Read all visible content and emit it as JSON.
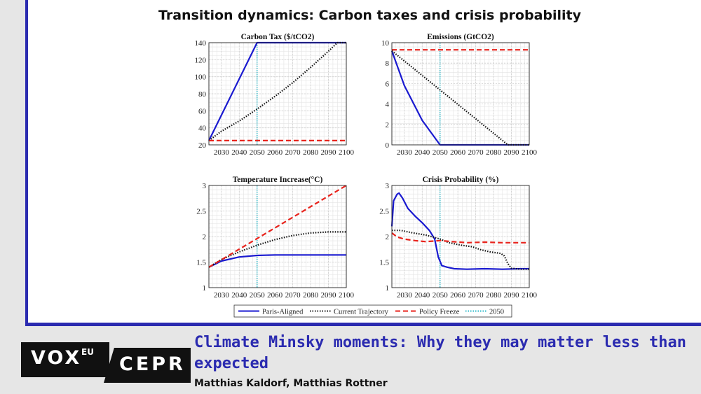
{
  "figure": {
    "title": "Transition dynamics: Carbon taxes and crisis probability"
  },
  "colors": {
    "paris": "#1a1ad0",
    "current": "#111111",
    "freeze": "#e8231c",
    "y2050": "#2ab8c8",
    "brand": "#2b2bb0"
  },
  "chart_data": [
    {
      "type": "line",
      "title": "Carbon Tax ($/tCO2)",
      "xlim": [
        2023,
        2100
      ],
      "ylim": [
        20,
        140
      ],
      "xticks": [
        2030,
        2040,
        2050,
        2060,
        2070,
        2080,
        2090,
        2100
      ],
      "yticks": [
        20,
        40,
        60,
        80,
        100,
        120,
        140
      ],
      "vline": 2050,
      "grid": true,
      "series": [
        {
          "name": "Paris-Aligned",
          "style": "solid",
          "points": [
            [
              2023,
              25
            ],
            [
              2050,
              140
            ],
            [
              2100,
              140
            ]
          ]
        },
        {
          "name": "Current Trajectory",
          "style": "dotted",
          "points": [
            [
              2023,
              25
            ],
            [
              2030,
              36
            ],
            [
              2040,
              48
            ],
            [
              2050,
              62
            ],
            [
              2060,
              77
            ],
            [
              2070,
              93
            ],
            [
              2080,
              111
            ],
            [
              2090,
              130
            ],
            [
              2095,
              140
            ],
            [
              2100,
              140
            ]
          ]
        },
        {
          "name": "Policy Freeze",
          "style": "dashed",
          "points": [
            [
              2023,
              25
            ],
            [
              2100,
              25
            ]
          ]
        }
      ]
    },
    {
      "type": "line",
      "title": "Emissions (GtCO2)",
      "xlim": [
        2023,
        2100
      ],
      "ylim": [
        0,
        10
      ],
      "xticks": [
        2030,
        2040,
        2050,
        2060,
        2070,
        2080,
        2090,
        2100
      ],
      "yticks": [
        0,
        2,
        4,
        6,
        8,
        10
      ],
      "vline": 2050,
      "grid": true,
      "series": [
        {
          "name": "Paris-Aligned",
          "style": "solid",
          "points": [
            [
              2023,
              9.2
            ],
            [
              2030,
              5.8
            ],
            [
              2040,
              2.4
            ],
            [
              2050,
              0
            ],
            [
              2100,
              0
            ]
          ]
        },
        {
          "name": "Current Trajectory",
          "style": "dotted",
          "points": [
            [
              2023,
              9.2
            ],
            [
              2088,
              0
            ],
            [
              2100,
              0
            ]
          ]
        },
        {
          "name": "Policy Freeze",
          "style": "dashed",
          "points": [
            [
              2023,
              9.3
            ],
            [
              2100,
              9.3
            ]
          ]
        }
      ]
    },
    {
      "type": "line",
      "title": "Temperature Increase(°C)",
      "xlim": [
        2023,
        2100
      ],
      "ylim": [
        1,
        3
      ],
      "xticks": [
        2030,
        2040,
        2050,
        2060,
        2070,
        2080,
        2090,
        2100
      ],
      "yticks": [
        1,
        1.5,
        2,
        2.5,
        3
      ],
      "vline": 2050,
      "grid": true,
      "series": [
        {
          "name": "Paris-Aligned",
          "style": "solid",
          "points": [
            [
              2023,
              1.4
            ],
            [
              2030,
              1.52
            ],
            [
              2040,
              1.6
            ],
            [
              2050,
              1.63
            ],
            [
              2060,
              1.64
            ],
            [
              2100,
              1.64
            ]
          ]
        },
        {
          "name": "Current Trajectory",
          "style": "dotted",
          "points": [
            [
              2023,
              1.4
            ],
            [
              2030,
              1.55
            ],
            [
              2040,
              1.7
            ],
            [
              2050,
              1.83
            ],
            [
              2060,
              1.94
            ],
            [
              2070,
              2.02
            ],
            [
              2080,
              2.07
            ],
            [
              2090,
              2.09
            ],
            [
              2100,
              2.09
            ]
          ]
        },
        {
          "name": "Policy Freeze",
          "style": "dashed",
          "points": [
            [
              2023,
              1.4
            ],
            [
              2100,
              3.0
            ]
          ]
        }
      ]
    },
    {
      "type": "line",
      "title": "Crisis Probability (%)",
      "xlim": [
        2023,
        2100
      ],
      "ylim": [
        1,
        3
      ],
      "xticks": [
        2030,
        2040,
        2050,
        2060,
        2070,
        2080,
        2090,
        2100
      ],
      "yticks": [
        1,
        1.5,
        2,
        2.5,
        3
      ],
      "vline": 2050,
      "grid": true,
      "series": [
        {
          "name": "Paris-Aligned",
          "style": "solid",
          "points": [
            [
              2023,
              2.2
            ],
            [
              2024,
              2.7
            ],
            [
              2026,
              2.83
            ],
            [
              2027,
              2.85
            ],
            [
              2029,
              2.75
            ],
            [
              2032,
              2.55
            ],
            [
              2036,
              2.4
            ],
            [
              2040,
              2.27
            ],
            [
              2044,
              2.12
            ],
            [
              2047,
              1.95
            ],
            [
              2049,
              1.6
            ],
            [
              2051,
              1.43
            ],
            [
              2054,
              1.4
            ],
            [
              2058,
              1.37
            ],
            [
              2065,
              1.36
            ],
            [
              2075,
              1.37
            ],
            [
              2085,
              1.36
            ],
            [
              2095,
              1.37
            ],
            [
              2100,
              1.37
            ]
          ]
        },
        {
          "name": "Current Trajectory",
          "style": "dotted",
          "points": [
            [
              2023,
              2.12
            ],
            [
              2028,
              2.12
            ],
            [
              2035,
              2.07
            ],
            [
              2042,
              2.03
            ],
            [
              2050,
              1.95
            ],
            [
              2055,
              1.88
            ],
            [
              2062,
              1.83
            ],
            [
              2068,
              1.8
            ],
            [
              2073,
              1.74
            ],
            [
              2078,
              1.7
            ],
            [
              2084,
              1.67
            ],
            [
              2086,
              1.62
            ],
            [
              2088,
              1.47
            ],
            [
              2090,
              1.38
            ],
            [
              2095,
              1.36
            ],
            [
              2100,
              1.36
            ]
          ]
        },
        {
          "name": "Policy Freeze",
          "style": "dashed",
          "points": [
            [
              2023,
              2.07
            ],
            [
              2026,
              1.99
            ],
            [
              2030,
              1.95
            ],
            [
              2036,
              1.92
            ],
            [
              2042,
              1.9
            ],
            [
              2050,
              1.92
            ],
            [
              2057,
              1.9
            ],
            [
              2065,
              1.88
            ],
            [
              2075,
              1.89
            ],
            [
              2085,
              1.88
            ],
            [
              2100,
              1.88
            ]
          ]
        }
      ]
    }
  ],
  "legend": {
    "items": [
      {
        "label": "Paris-Aligned",
        "style": "solid",
        "color": "#1a1ad0"
      },
      {
        "label": "Current Trajectory",
        "style": "dotted",
        "color": "#111111"
      },
      {
        "label": "Policy Freeze",
        "style": "dashed",
        "color": "#e8231c"
      },
      {
        "label": "2050",
        "style": "dotted",
        "color": "#2ab8c8"
      }
    ]
  },
  "branding": {
    "vox": "VOX",
    "vox_sup": "EU",
    "cepr": "CEPR",
    "headline": "Climate Minsky moments: Why they may matter less than expected",
    "authors": "Matthias Kaldorf, Matthias Rottner"
  }
}
